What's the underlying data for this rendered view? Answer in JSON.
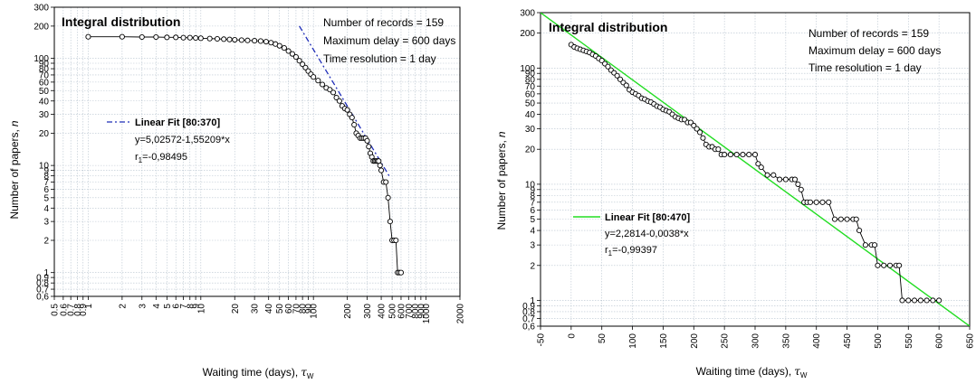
{
  "chart_data": [
    {
      "type": "scatter",
      "title": "Integral distribution",
      "xlabel": "Waiting time (days),",
      "xlabel_symbol": "τ",
      "xlabel_sub": "W",
      "ylabel": "Number of papers,",
      "ylabel_symbol": "n",
      "x_scale": "log",
      "y_scale": "log",
      "xlim": [
        0.5,
        2000
      ],
      "ylim": [
        0.6,
        300
      ],
      "grid": true,
      "info": [
        "Number of records = 159",
        "Maximum delay = 600 days",
        "Time resolution = 1 day"
      ],
      "x_ticks": [
        {
          "value": 0.5,
          "label": "0.5"
        },
        {
          "value": 0.6,
          "label": "0.6"
        },
        {
          "value": 0.7,
          "label": "0.7"
        },
        {
          "value": 0.8,
          "label": "0.8"
        },
        {
          "value": 0.9,
          "label": "0.9"
        },
        {
          "value": 1,
          "label": "1"
        },
        {
          "value": 2,
          "label": "2"
        },
        {
          "value": 3,
          "label": "3"
        },
        {
          "value": 4,
          "label": "4"
        },
        {
          "value": 5,
          "label": "5"
        },
        {
          "value": 6,
          "label": "6"
        },
        {
          "value": 7,
          "label": "7"
        },
        {
          "value": 8,
          "label": "8"
        },
        {
          "value": 9,
          "label": "9"
        },
        {
          "value": 10,
          "label": "10"
        },
        {
          "value": 20,
          "label": "20"
        },
        {
          "value": 30,
          "label": "30"
        },
        {
          "value": 40,
          "label": "40"
        },
        {
          "value": 50,
          "label": "50"
        },
        {
          "value": 60,
          "label": "60"
        },
        {
          "value": 70,
          "label": "70"
        },
        {
          "value": 80,
          "label": "80"
        },
        {
          "value": 90,
          "label": "90"
        },
        {
          "value": 100,
          "label": "100"
        },
        {
          "value": 200,
          "label": "200"
        },
        {
          "value": 300,
          "label": "300"
        },
        {
          "value": 400,
          "label": "400"
        },
        {
          "value": 500,
          "label": "500"
        },
        {
          "value": 600,
          "label": "600"
        },
        {
          "value": 700,
          "label": "700"
        },
        {
          "value": 800,
          "label": "800"
        },
        {
          "value": 900,
          "label": "900"
        },
        {
          "value": 1000,
          "label": "1000"
        },
        {
          "value": 2000,
          "label": "2000"
        }
      ],
      "y_ticks": [
        {
          "value": 0.6,
          "label": "0,6"
        },
        {
          "value": 0.7,
          "label": "0,7"
        },
        {
          "value": 0.8,
          "label": "0,8"
        },
        {
          "value": 0.9,
          "label": "0,9"
        },
        {
          "value": 1,
          "label": "1"
        },
        {
          "value": 2,
          "label": "2"
        },
        {
          "value": 3,
          "label": "3"
        },
        {
          "value": 4,
          "label": "4"
        },
        {
          "value": 5,
          "label": "5"
        },
        {
          "value": 6,
          "label": "6"
        },
        {
          "value": 7,
          "label": "7"
        },
        {
          "value": 8,
          "label": "8"
        },
        {
          "value": 9,
          "label": "9"
        },
        {
          "value": 10,
          "label": "10"
        },
        {
          "value": 20,
          "label": "20"
        },
        {
          "value": 30,
          "label": "30"
        },
        {
          "value": 40,
          "label": "40"
        },
        {
          "value": 50,
          "label": "50"
        },
        {
          "value": 60,
          "label": "60"
        },
        {
          "value": 70,
          "label": "70"
        },
        {
          "value": 80,
          "label": "80"
        },
        {
          "value": 90,
          "label": "90"
        },
        {
          "value": 100,
          "label": "100"
        },
        {
          "value": 200,
          "label": "200"
        },
        {
          "value": 300,
          "label": "300"
        }
      ],
      "series": [
        {
          "kind": "points",
          "x": [
            1,
            2,
            3,
            4,
            5,
            6,
            7,
            8,
            9,
            10,
            12,
            14,
            16,
            18,
            20,
            23,
            26,
            30,
            34,
            38,
            42,
            46,
            50,
            55,
            60,
            65,
            70,
            75,
            80,
            85,
            90,
            95,
            100,
            110,
            120,
            130,
            140,
            150,
            160,
            170,
            180,
            190,
            200,
            210,
            220,
            230,
            240,
            250,
            260,
            270,
            280,
            290,
            300,
            310,
            320,
            330,
            340,
            350,
            360,
            370,
            380,
            390,
            400,
            420,
            440,
            460,
            480,
            500,
            520,
            540,
            560,
            580,
            600
          ],
          "y": [
            159,
            159,
            158,
            158,
            157,
            157,
            156,
            156,
            155,
            154,
            153,
            152,
            151,
            150,
            149,
            148,
            147,
            146,
            145,
            143,
            140,
            136,
            131,
            125,
            117,
            110,
            103,
            95,
            88,
            82,
            76,
            71,
            67,
            62,
            57,
            53,
            51,
            48,
            43,
            40,
            36,
            34,
            33,
            30,
            28,
            24,
            20,
            19,
            18,
            18,
            18,
            18,
            17,
            15,
            13,
            12,
            11,
            11,
            11,
            11,
            11,
            10,
            9,
            7,
            7,
            5,
            3,
            2,
            2,
            2,
            1,
            1,
            1
          ]
        },
        {
          "kind": "fit",
          "name": "Linear Fit [80:370]",
          "color": "#1f2db8",
          "x": [
            75,
            470
          ],
          "y": [
            200,
            8
          ],
          "equation": "y=5,02572-1,55209*x",
          "r_label": "r",
          "r_sub": "1",
          "r_value": "=-0,98495"
        }
      ]
    },
    {
      "type": "scatter",
      "title": "Integral distribution",
      "xlabel": "Waiting time (days),",
      "xlabel_symbol": "τ",
      "xlabel_sub": "W",
      "ylabel": "Number of papers,",
      "ylabel_symbol": "n",
      "x_scale": "linear",
      "y_scale": "log",
      "xlim": [
        -50,
        650
      ],
      "ylim": [
        0.6,
        300
      ],
      "grid": true,
      "info": [
        "Number of records = 159",
        "Maximum delay = 600 days",
        "Time resolution = 1 day"
      ],
      "x_ticks": [
        {
          "value": -50,
          "label": "-50"
        },
        {
          "value": 0,
          "label": "0"
        },
        {
          "value": 50,
          "label": "50"
        },
        {
          "value": 100,
          "label": "100"
        },
        {
          "value": 150,
          "label": "150"
        },
        {
          "value": 200,
          "label": "200"
        },
        {
          "value": 250,
          "label": "250"
        },
        {
          "value": 300,
          "label": "300"
        },
        {
          "value": 350,
          "label": "350"
        },
        {
          "value": 400,
          "label": "400"
        },
        {
          "value": 450,
          "label": "450"
        },
        {
          "value": 500,
          "label": "500"
        },
        {
          "value": 550,
          "label": "550"
        },
        {
          "value": 600,
          "label": "600"
        },
        {
          "value": 650,
          "label": "650"
        }
      ],
      "y_ticks": [
        {
          "value": 0.6,
          "label": "0,6"
        },
        {
          "value": 0.7,
          "label": "0,7"
        },
        {
          "value": 0.8,
          "label": "0,8"
        },
        {
          "value": 0.9,
          "label": "0,9"
        },
        {
          "value": 1,
          "label": "1"
        },
        {
          "value": 2,
          "label": "2"
        },
        {
          "value": 3,
          "label": "3"
        },
        {
          "value": 4,
          "label": "4"
        },
        {
          "value": 5,
          "label": "5"
        },
        {
          "value": 6,
          "label": "6"
        },
        {
          "value": 7,
          "label": "7"
        },
        {
          "value": 8,
          "label": "8"
        },
        {
          "value": 9,
          "label": "9"
        },
        {
          "value": 10,
          "label": "10"
        },
        {
          "value": 20,
          "label": "20"
        },
        {
          "value": 30,
          "label": "30"
        },
        {
          "value": 40,
          "label": "40"
        },
        {
          "value": 50,
          "label": "50"
        },
        {
          "value": 60,
          "label": "60"
        },
        {
          "value": 70,
          "label": "70"
        },
        {
          "value": 80,
          "label": "80"
        },
        {
          "value": 90,
          "label": "90"
        },
        {
          "value": 100,
          "label": "100"
        },
        {
          "value": 200,
          "label": "200"
        },
        {
          "value": 300,
          "label": "300"
        }
      ],
      "series": [
        {
          "kind": "points",
          "x": [
            0,
            5,
            10,
            15,
            20,
            25,
            30,
            35,
            40,
            45,
            50,
            55,
            60,
            65,
            70,
            75,
            80,
            85,
            90,
            95,
            100,
            105,
            110,
            115,
            120,
            125,
            130,
            135,
            140,
            145,
            150,
            155,
            160,
            165,
            170,
            175,
            180,
            185,
            190,
            195,
            200,
            205,
            210,
            215,
            220,
            225,
            230,
            235,
            240,
            245,
            250,
            260,
            270,
            280,
            290,
            300,
            305,
            310,
            320,
            330,
            340,
            350,
            360,
            365,
            370,
            375,
            380,
            385,
            390,
            400,
            410,
            420,
            430,
            440,
            450,
            460,
            465,
            470,
            480,
            490,
            495,
            500,
            510,
            520,
            530,
            535,
            540,
            550,
            560,
            570,
            580,
            590,
            600
          ],
          "y": [
            159,
            152,
            148,
            145,
            142,
            139,
            136,
            131,
            127,
            121,
            116,
            109,
            103,
            96,
            91,
            86,
            80,
            75,
            71,
            65,
            62,
            60,
            58,
            55,
            54,
            52,
            51,
            49,
            47,
            46,
            44,
            43,
            42,
            40,
            38,
            37,
            36,
            36,
            34,
            34,
            32,
            30,
            28,
            25,
            22,
            21,
            21,
            20,
            20,
            18,
            18,
            18,
            18,
            18,
            18,
            18,
            15,
            14,
            12,
            12,
            11,
            11,
            11,
            11,
            10,
            9,
            7,
            7,
            7,
            7,
            7,
            7,
            5,
            5,
            5,
            5,
            5,
            4,
            3,
            3,
            3,
            2,
            2,
            2,
            2,
            2,
            1,
            1,
            1,
            1,
            1,
            1,
            1
          ]
        },
        {
          "kind": "fit",
          "name": "Linear Fit [80:470]",
          "color": "#22dd22",
          "x": [
            -50,
            650
          ],
          "y": [
            300,
            0.6
          ],
          "equation": "y=2,2814-0,0038*x",
          "r_label": "r",
          "r_sub": "1",
          "r_value": "=-0,99397"
        }
      ]
    }
  ]
}
